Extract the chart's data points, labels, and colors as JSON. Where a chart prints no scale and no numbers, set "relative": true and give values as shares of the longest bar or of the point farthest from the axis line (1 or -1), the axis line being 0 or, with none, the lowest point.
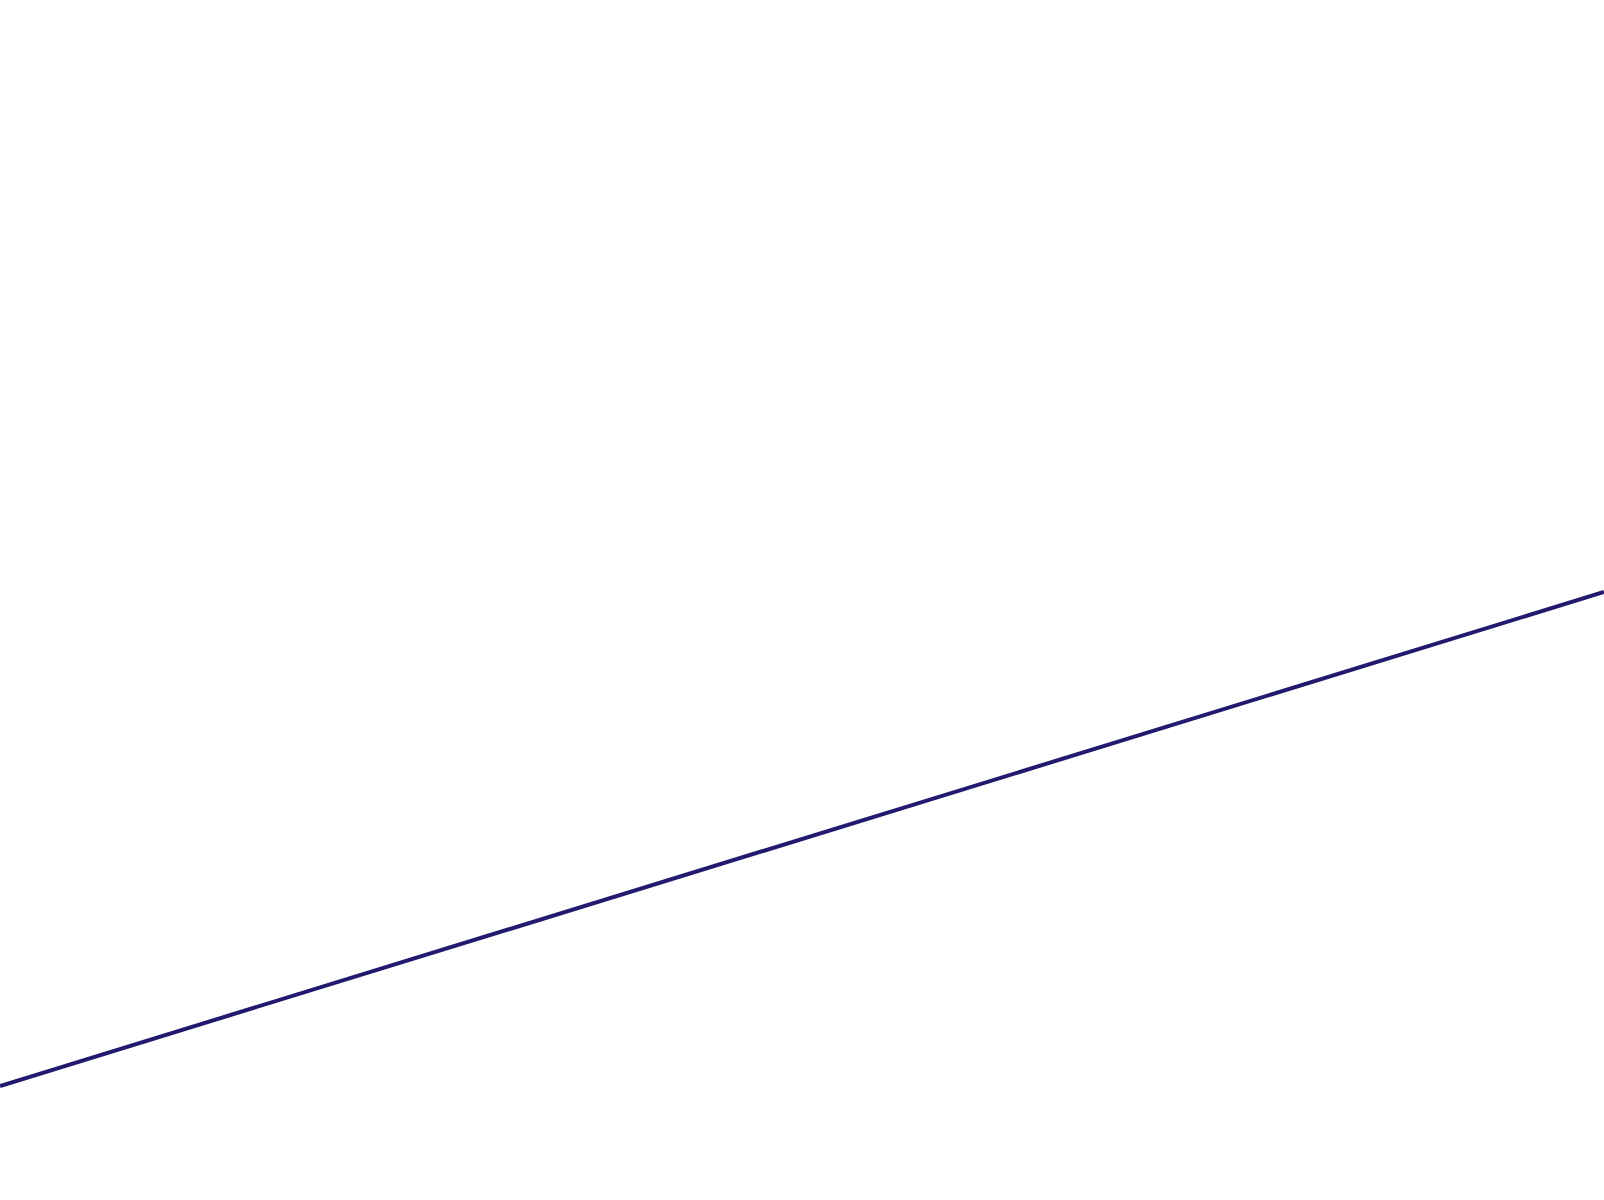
{
  "chart_data": {
    "type": "line",
    "relative": true,
    "categories": [
      null,
      null
    ],
    "series": [
      {
        "color": "#221a6e",
        "values": [
          0,
          1
        ]
      }
    ],
    "grid": false,
    "legend": false,
    "marker": "none",
    "line_style": "solid"
  }
}
